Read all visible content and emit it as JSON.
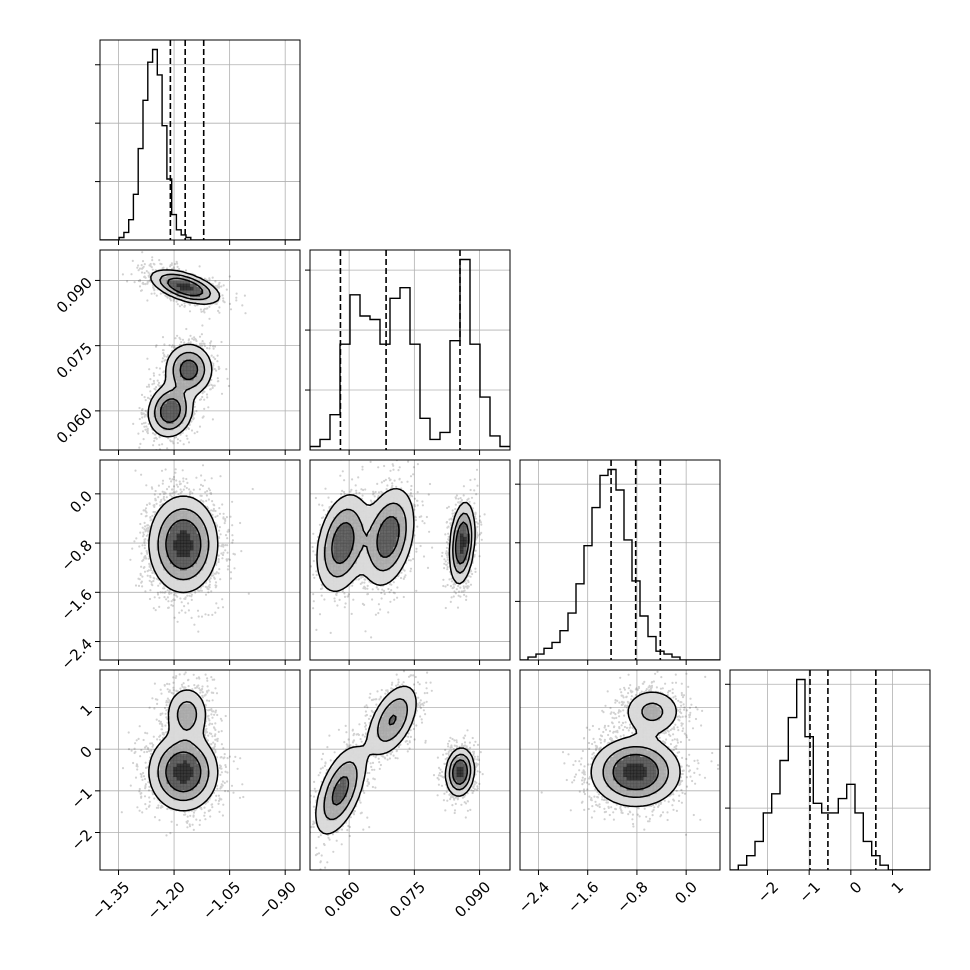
{
  "chart_data": {
    "type": "corner",
    "grid": true,
    "parameters": [
      {
        "range": [
          -1.4,
          -0.86
        ],
        "ticks": [
          -1.35,
          -1.2,
          -1.05,
          -0.9
        ],
        "tick_labels": [
          "−1.35",
          "−1.20",
          "−1.05",
          "−0.90"
        ]
      },
      {
        "range": [
          0.051,
          0.097
        ],
        "ticks": [
          0.06,
          0.075,
          0.09
        ],
        "tick_labels": [
          "0.060",
          "0.075",
          "0.090"
        ]
      },
      {
        "range": [
          -2.7,
          0.55
        ],
        "ticks": [
          -2.4,
          -1.6,
          -0.8,
          0.0
        ],
        "tick_labels": [
          "−2.4",
          "−1.6",
          "−0.8",
          "0.0"
        ]
      },
      {
        "range": [
          -2.9,
          1.9
        ],
        "ticks": [
          -2,
          -1,
          0,
          1
        ],
        "tick_labels": [
          "−2",
          "−1",
          "0",
          "1"
        ]
      }
    ],
    "histograms": [
      {
        "parameter": 0,
        "bin_edges_start": -1.4,
        "bin_width": 0.0129,
        "counts": [
          0,
          0,
          0,
          0,
          1,
          3,
          8,
          18,
          36,
          55,
          70,
          75,
          65,
          45,
          24,
          10,
          4,
          2,
          1,
          0,
          0,
          0,
          0,
          0,
          0,
          0,
          0,
          0,
          0,
          0,
          0,
          0,
          0,
          0,
          0,
          0,
          0,
          0,
          0,
          0,
          0,
          0
        ],
        "quantiles": [
          -1.21,
          -1.17,
          -1.12
        ]
      },
      {
        "parameter": 1,
        "bin_edges_start": 0.051,
        "bin_width": 0.0023,
        "counts": [
          1,
          3,
          10,
          30,
          44,
          38,
          37,
          30,
          43,
          46,
          30,
          9,
          3,
          5,
          31,
          54,
          30,
          15,
          4,
          1
        ],
        "quantiles": [
          0.058,
          0.0685,
          0.0855
        ]
      },
      {
        "parameter": 2,
        "bin_edges_start": -2.7,
        "bin_width": 0.13,
        "counts": [
          0,
          1,
          2,
          4,
          6,
          10,
          16,
          26,
          39,
          52,
          63,
          65,
          58,
          41,
          27,
          15,
          8,
          3,
          2,
          1,
          0,
          0,
          0,
          0,
          0
        ],
        "quantiles": [
          -1.22,
          -0.82,
          -0.42
        ]
      },
      {
        "parameter": 3,
        "bin_edges_start": -2.9,
        "bin_width": 0.2,
        "counts": [
          0,
          1,
          3,
          6,
          12,
          16,
          23,
          32,
          40,
          28,
          14,
          12,
          12,
          15,
          18,
          12,
          6,
          3,
          1,
          0,
          0,
          0,
          0,
          0
        ],
        "quantiles": [
          -0.98,
          -0.55,
          0.6
        ]
      }
    ],
    "density_2d": [
      {
        "x": 0,
        "y": 1,
        "modes": [
          {
            "center": [
              -1.17,
              0.0885
            ],
            "sigma": [
              0.045,
              0.0019
            ],
            "rho": -0.55,
            "weight": 1.0
          },
          {
            "center": [
              -1.21,
              0.06
            ],
            "sigma": [
              0.03,
              0.003
            ],
            "rho": 0.1,
            "weight": 0.85
          },
          {
            "center": [
              -1.16,
              0.0695
            ],
            "sigma": [
              0.032,
              0.003
            ],
            "rho": 0.0,
            "weight": 0.75
          }
        ]
      },
      {
        "x": 0,
        "y": 2,
        "modes": [
          {
            "center": [
              -1.175,
              -0.82
            ],
            "sigma": [
              0.045,
              0.38
            ],
            "rho": 0.0,
            "weight": 1.0
          }
        ]
      },
      {
        "x": 1,
        "y": 2,
        "modes": [
          {
            "center": [
              0.0585,
              -0.8
            ],
            "sigma": [
              0.003,
              0.4
            ],
            "rho": 0.3,
            "weight": 0.8
          },
          {
            "center": [
              0.069,
              -0.7
            ],
            "sigma": [
              0.003,
              0.4
            ],
            "rho": 0.3,
            "weight": 0.8
          },
          {
            "center": [
              0.086,
              -0.8
            ],
            "sigma": [
              0.0014,
              0.32
            ],
            "rho": 0.25,
            "weight": 1.0
          }
        ]
      },
      {
        "x": 0,
        "y": 3,
        "modes": [
          {
            "center": [
              -1.175,
              -0.55
            ],
            "sigma": [
              0.045,
              0.45
            ],
            "rho": 0.0,
            "weight": 1.0
          },
          {
            "center": [
              -1.165,
              0.85
            ],
            "sigma": [
              0.03,
              0.35
            ],
            "rho": 0.0,
            "weight": 0.45
          }
        ]
      },
      {
        "x": 1,
        "y": 3,
        "modes": [
          {
            "center": [
              0.058,
              -1.0
            ],
            "sigma": [
              0.003,
              0.55
            ],
            "rho": 0.55,
            "weight": 0.7
          },
          {
            "center": [
              0.07,
              0.7
            ],
            "sigma": [
              0.003,
              0.45
            ],
            "rho": 0.5,
            "weight": 0.6
          },
          {
            "center": [
              0.0855,
              -0.55
            ],
            "sigma": [
              0.0016,
              0.28
            ],
            "rho": 0.1,
            "weight": 1.0
          }
        ]
      },
      {
        "x": 2,
        "y": 3,
        "modes": [
          {
            "center": [
              -0.82,
              -0.55
            ],
            "sigma": [
              0.35,
              0.4
            ],
            "rho": 0.0,
            "weight": 1.0
          },
          {
            "center": [
              -0.55,
              0.9
            ],
            "sigma": [
              0.25,
              0.3
            ],
            "rho": 0.0,
            "weight": 0.4
          }
        ]
      }
    ]
  }
}
